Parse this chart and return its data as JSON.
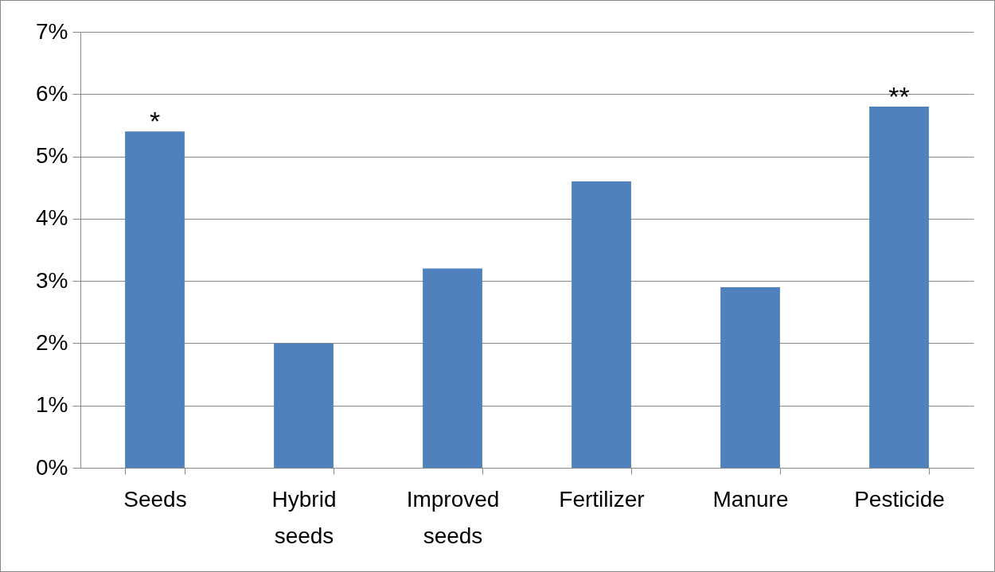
{
  "chart_data": {
    "type": "bar",
    "categories": [
      "Seeds",
      "Hybrid seeds",
      "Improved seeds",
      "Fertilizer",
      "Manure",
      "Pesticide"
    ],
    "values": [
      5.4,
      2.0,
      3.2,
      4.6,
      2.9,
      5.8
    ],
    "color": "#4f81bd",
    "ylim": [
      0,
      7
    ],
    "yticks": [
      {
        "value": 0,
        "label": "0%"
      },
      {
        "value": 1,
        "label": "1%"
      },
      {
        "value": 2,
        "label": "2%"
      },
      {
        "value": 3,
        "label": "3%"
      },
      {
        "value": 4,
        "label": "4%"
      },
      {
        "value": 5,
        "label": "5%"
      },
      {
        "value": 6,
        "label": "6%"
      },
      {
        "value": 7,
        "label": "7%"
      }
    ],
    "grid": "y",
    "legend": false,
    "annotations": [
      {
        "text": "*",
        "x": "Seeds",
        "y": 5.4
      },
      {
        "text": "**",
        "x": "Pesticide",
        "y": 5.8
      }
    ]
  }
}
